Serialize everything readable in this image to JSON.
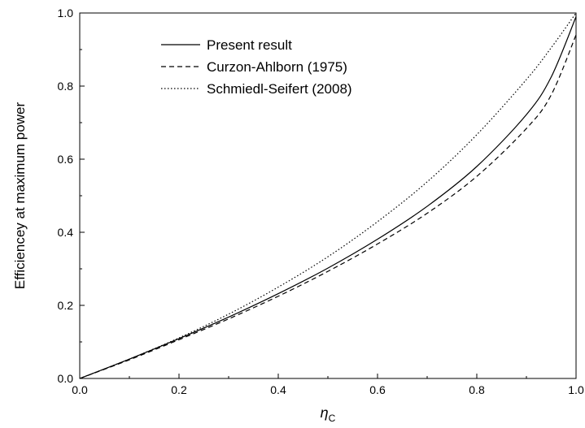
{
  "chart_data": {
    "type": "line",
    "title": "",
    "xlabel": {
      "symbol": "η",
      "subscript": "C"
    },
    "ylabel": "Efficiencey at maximum power",
    "xlim": [
      0.0,
      1.0
    ],
    "ylim": [
      0.0,
      1.0
    ],
    "xticks": [
      "0.0",
      "0.2",
      "0.4",
      "0.6",
      "0.8",
      "1.0"
    ],
    "yticks": [
      "0.0",
      "0.2",
      "0.4",
      "0.6",
      "0.8",
      "1.0"
    ],
    "grid": false,
    "legend_position": "upper-left",
    "series": [
      {
        "name": "Present result",
        "style": "solid",
        "x": [
          0.0,
          0.1,
          0.2,
          0.3,
          0.4,
          0.5,
          0.6,
          0.7,
          0.8,
          0.9,
          0.95,
          1.0
        ],
        "y": [
          0.0,
          0.053,
          0.109,
          0.168,
          0.232,
          0.302,
          0.381,
          0.471,
          0.58,
          0.722,
          0.825,
          0.99
        ]
      },
      {
        "name": "Curzon-Ahlborn (1975)",
        "style": "dashed",
        "x": [
          0.0,
          0.1,
          0.2,
          0.3,
          0.4,
          0.5,
          0.6,
          0.7,
          0.8,
          0.9,
          0.95,
          1.0
        ],
        "y": [
          0.0,
          0.051,
          0.106,
          0.163,
          0.225,
          0.293,
          0.368,
          0.452,
          0.553,
          0.684,
          0.776,
          0.94
        ]
      },
      {
        "name": "Schmiedl-Seifert (2008)",
        "style": "dotted",
        "x": [
          0.0,
          0.1,
          0.2,
          0.3,
          0.4,
          0.5,
          0.6,
          0.7,
          0.8,
          0.9,
          0.95,
          1.0
        ],
        "y": [
          0.0,
          0.053,
          0.111,
          0.176,
          0.25,
          0.333,
          0.429,
          0.538,
          0.667,
          0.818,
          0.905,
          1.0
        ]
      }
    ]
  }
}
